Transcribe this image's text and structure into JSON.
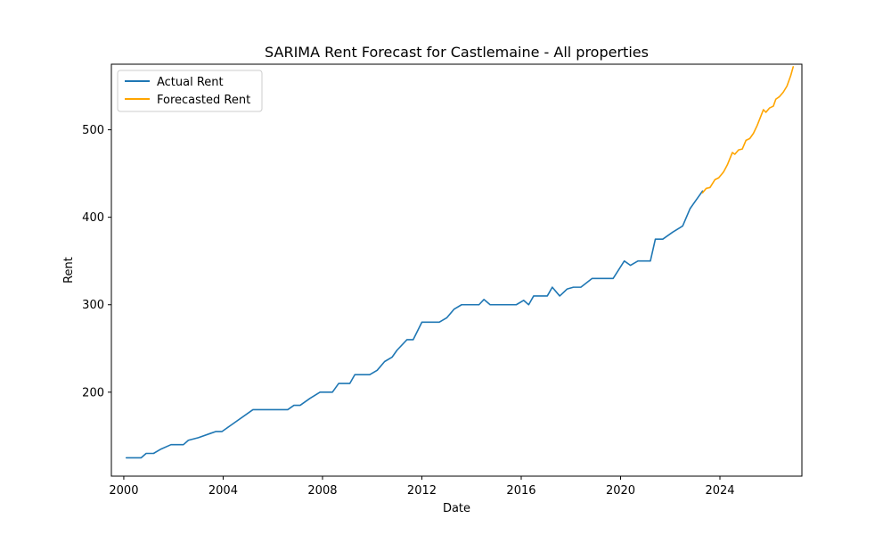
{
  "chart_data": {
    "type": "line",
    "title": "SARIMA Rent Forecast for Castlemaine - All properties",
    "xlabel": "Date",
    "ylabel": "Rent",
    "xlim": [
      1999.5,
      2027.3
    ],
    "ylim": [
      104,
      575
    ],
    "x_ticks": [
      2000,
      2004,
      2008,
      2012,
      2016,
      2020,
      2024
    ],
    "x_tick_labels": [
      "2000",
      "2004",
      "2008",
      "2012",
      "2016",
      "2020",
      "2024"
    ],
    "y_ticks": [
      200,
      300,
      400,
      500
    ],
    "y_tick_labels": [
      "200",
      "300",
      "400",
      "500"
    ],
    "grid": false,
    "legend_position": "top-left",
    "series": [
      {
        "name": "Actual Rent",
        "color": "#1f77b4",
        "points": [
          [
            2000.1,
            125
          ],
          [
            2000.7,
            125
          ],
          [
            2000.9,
            130
          ],
          [
            2001.2,
            130
          ],
          [
            2001.5,
            135
          ],
          [
            2001.9,
            140
          ],
          [
            2002.4,
            140
          ],
          [
            2002.6,
            145
          ],
          [
            2003.0,
            148
          ],
          [
            2003.5,
            153
          ],
          [
            2003.7,
            155
          ],
          [
            2003.95,
            155
          ],
          [
            2004.3,
            162
          ],
          [
            2005.2,
            180
          ],
          [
            2006.2,
            180
          ],
          [
            2006.6,
            180
          ],
          [
            2006.85,
            185
          ],
          [
            2007.1,
            185
          ],
          [
            2007.5,
            193
          ],
          [
            2007.9,
            200
          ],
          [
            2008.4,
            200
          ],
          [
            2008.65,
            210
          ],
          [
            2009.1,
            210
          ],
          [
            2009.3,
            220
          ],
          [
            2009.9,
            220
          ],
          [
            2010.2,
            225
          ],
          [
            2010.5,
            235
          ],
          [
            2010.8,
            240
          ],
          [
            2011.0,
            248
          ],
          [
            2011.4,
            260
          ],
          [
            2011.65,
            260
          ],
          [
            2012.0,
            280
          ],
          [
            2012.7,
            280
          ],
          [
            2013.0,
            285
          ],
          [
            2013.3,
            295
          ],
          [
            2013.6,
            300
          ],
          [
            2014.3,
            300
          ],
          [
            2014.5,
            306
          ],
          [
            2014.75,
            300
          ],
          [
            2015.8,
            300
          ],
          [
            2016.1,
            305
          ],
          [
            2016.3,
            300
          ],
          [
            2016.5,
            310
          ],
          [
            2017.05,
            310
          ],
          [
            2017.25,
            320
          ],
          [
            2017.55,
            310
          ],
          [
            2017.85,
            318
          ],
          [
            2018.1,
            320
          ],
          [
            2018.4,
            320
          ],
          [
            2018.85,
            330
          ],
          [
            2019.7,
            330
          ],
          [
            2020.15,
            350
          ],
          [
            2020.4,
            345
          ],
          [
            2020.7,
            350
          ],
          [
            2021.2,
            350
          ],
          [
            2021.4,
            375
          ],
          [
            2021.7,
            375
          ],
          [
            2022.1,
            383
          ],
          [
            2022.5,
            390
          ],
          [
            2022.8,
            410
          ],
          [
            2023.1,
            422
          ],
          [
            2023.3,
            430
          ]
        ]
      },
      {
        "name": "Forecasted Rent",
        "color": "#ffa500",
        "points": [
          [
            2023.3,
            428
          ],
          [
            2023.45,
            433
          ],
          [
            2023.6,
            434
          ],
          [
            2023.8,
            443
          ],
          [
            2023.95,
            445
          ],
          [
            2024.15,
            452
          ],
          [
            2024.3,
            460
          ],
          [
            2024.5,
            474
          ],
          [
            2024.6,
            472
          ],
          [
            2024.75,
            477
          ],
          [
            2024.9,
            478
          ],
          [
            2025.05,
            488
          ],
          [
            2025.2,
            490
          ],
          [
            2025.35,
            496
          ],
          [
            2025.5,
            505
          ],
          [
            2025.75,
            523
          ],
          [
            2025.85,
            520
          ],
          [
            2026.0,
            525
          ],
          [
            2026.15,
            527
          ],
          [
            2026.25,
            535
          ],
          [
            2026.4,
            538
          ],
          [
            2026.55,
            543
          ],
          [
            2026.7,
            550
          ],
          [
            2026.85,
            562
          ],
          [
            2026.95,
            572
          ]
        ]
      }
    ]
  }
}
